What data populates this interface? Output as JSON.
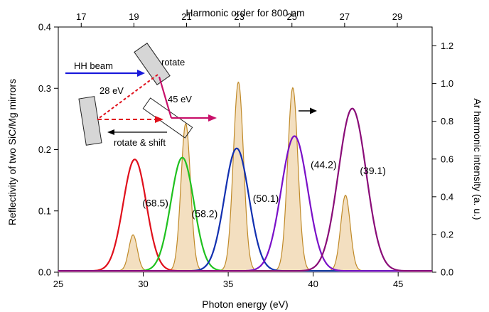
{
  "chart_data": {
    "type": "line",
    "title": "",
    "xlabel": "Photon energy (eV)",
    "ylabel_left": "Reflectivity of two SiC/Mg mirrors",
    "ylabel_right": "Ar harmonic intensity (a. u.)",
    "xlabel_top": "Harmonic order for 800 nm",
    "xlim": [
      25,
      47
    ],
    "ylim_left": [
      0,
      0.4
    ],
    "ylim_right": [
      0,
      1.3
    ],
    "x_ticks": [
      25,
      30,
      35,
      40,
      45
    ],
    "x_tick_labels": [
      "25",
      "30",
      "35",
      "40",
      "45"
    ],
    "y_left_ticks": [
      0.0,
      0.1,
      0.2,
      0.3,
      0.4
    ],
    "y_left_tick_labels": [
      "0.0",
      "0.1",
      "0.2",
      "0.3",
      "0.4"
    ],
    "y_right_ticks": [
      0.0,
      0.2,
      0.4,
      0.6,
      0.8,
      1.0,
      1.2
    ],
    "y_right_tick_labels": [
      "0.0",
      "0.2",
      "0.4",
      "0.6",
      "0.8",
      "1.0",
      "1.2"
    ],
    "top_ticks": [
      {
        "label": "17",
        "energy": 26.35
      },
      {
        "label": "19",
        "energy": 29.45
      },
      {
        "label": "21",
        "energy": 32.55
      },
      {
        "label": "23",
        "energy": 35.65
      },
      {
        "label": "25",
        "energy": 38.75
      },
      {
        "label": "27",
        "energy": 41.85
      },
      {
        "label": "29",
        "energy": 44.95
      }
    ],
    "reflectivity_series": [
      {
        "center": 29.5,
        "peak": 0.182,
        "width": 0.68,
        "color": "#e0101c",
        "label": "(68.5)"
      },
      {
        "center": 32.3,
        "peak": 0.185,
        "width": 0.68,
        "color": "#1fc11f",
        "label": "(58.2)"
      },
      {
        "center": 35.5,
        "peak": 0.2,
        "width": 0.72,
        "color": "#1230b0",
        "label": "(50.1)"
      },
      {
        "center": 38.9,
        "peak": 0.22,
        "width": 0.78,
        "color": "#7a10c8",
        "label": "(44.2)"
      },
      {
        "center": 42.3,
        "peak": 0.265,
        "width": 0.82,
        "color": "#8a0c78",
        "label": "(39.1)"
      }
    ],
    "harmonic_series": {
      "color": "#c08a28",
      "fill": "#f3dfc0",
      "peaks": [
        {
          "center": 29.4,
          "intensity": 0.19,
          "width": 0.25
        },
        {
          "center": 32.5,
          "intensity": 0.78,
          "width": 0.28
        },
        {
          "center": 35.6,
          "intensity": 1.0,
          "width": 0.3
        },
        {
          "center": 38.8,
          "intensity": 0.97,
          "width": 0.3
        },
        {
          "center": 41.9,
          "intensity": 0.4,
          "width": 0.28
        }
      ]
    }
  },
  "inset": {
    "hh_beam_label": "HH beam",
    "rotate_label": "rotate",
    "ev28_label": "28 eV",
    "ev45_label": "45 eV",
    "rotate_shift_label": "rotate & shift"
  }
}
